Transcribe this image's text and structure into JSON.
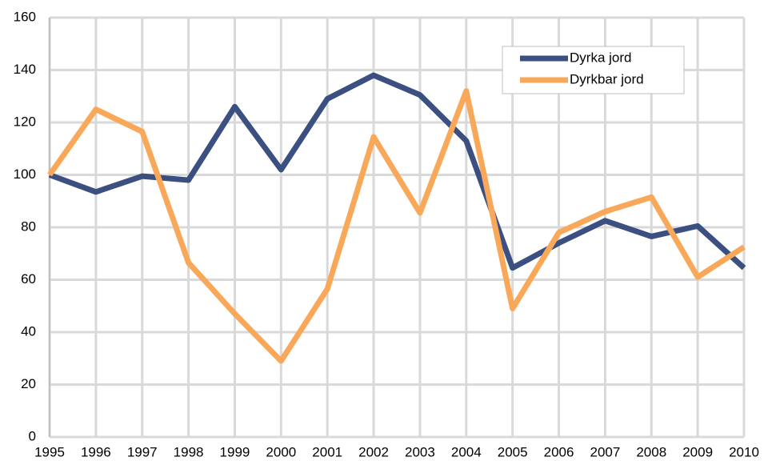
{
  "chart_data": {
    "type": "line",
    "x": [
      1995,
      1996,
      1997,
      1998,
      1999,
      2000,
      2001,
      2002,
      2003,
      2004,
      2005,
      2006,
      2007,
      2008,
      2009,
      2010
    ],
    "series": [
      {
        "name": "Dyrka jord",
        "color": "#3b4f80",
        "values": [
          100,
          93.5,
          99.5,
          98,
          126,
          102,
          129,
          138,
          130.5,
          113,
          64.5,
          74,
          82.5,
          76.5,
          80.5,
          64.5
        ]
      },
      {
        "name": "Dyrkbar jord",
        "color": "#f9a85a",
        "values": [
          100,
          125,
          116.5,
          66.5,
          47,
          29,
          56.5,
          114.5,
          85.5,
          132,
          49,
          78,
          86,
          91.5,
          61,
          72.5
        ]
      }
    ],
    "xlim": [
      1995,
      2010
    ],
    "xticks": [
      1995,
      1996,
      1997,
      1998,
      1999,
      2000,
      2001,
      2002,
      2003,
      2004,
      2005,
      2006,
      2007,
      2008,
      2009,
      2010
    ],
    "ylim": [
      0,
      160
    ],
    "yticks": [
      0,
      20,
      40,
      60,
      80,
      100,
      120,
      140,
      160
    ],
    "grid": true,
    "legend": "upper right"
  }
}
